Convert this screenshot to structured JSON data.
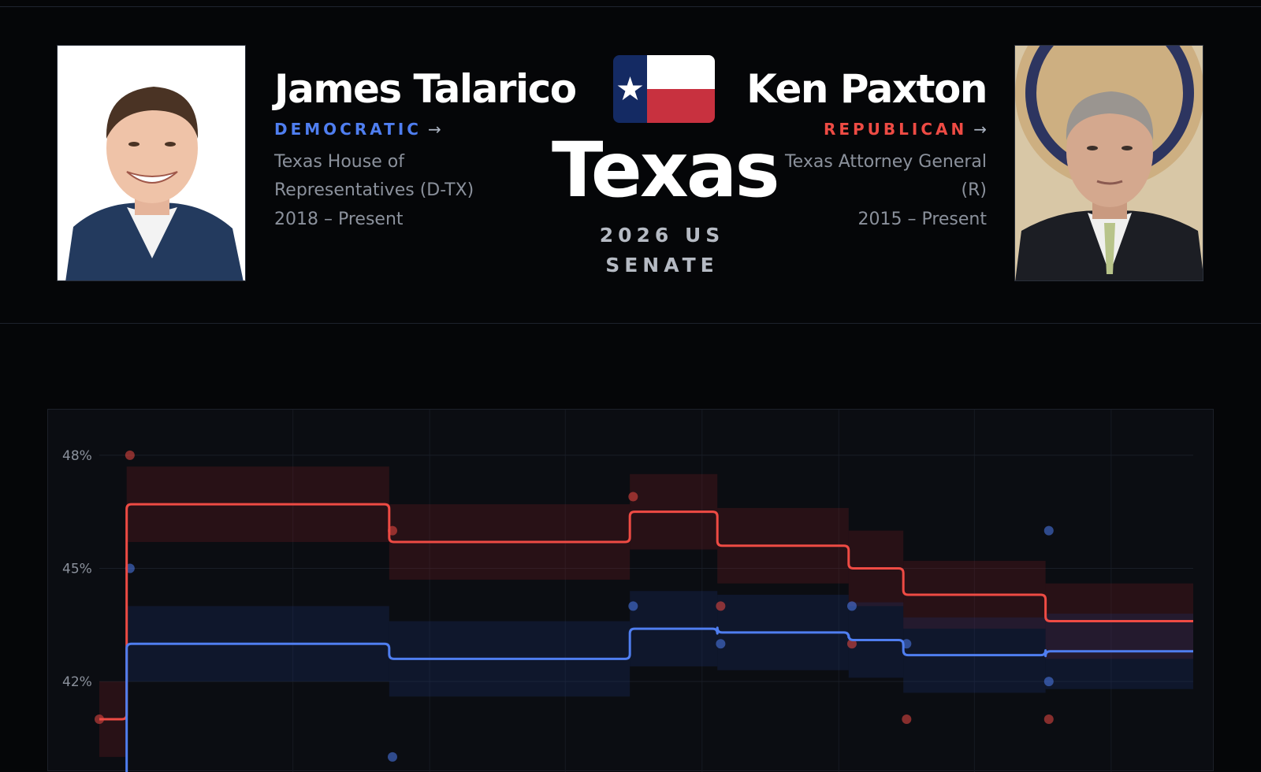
{
  "candidates": {
    "democrat": {
      "name": "James Talarico",
      "party": "DEMOCRATIC",
      "office": "Texas House of Representatives (D-TX)",
      "tenure": "2018 – Present",
      "color": "#4f7ef0"
    },
    "republican": {
      "name": "Ken Paxton",
      "party": "REPUBLICAN",
      "office": "Texas Attorney General (R)",
      "tenure": "2015 – Present",
      "color": "#ee4b44"
    }
  },
  "race": {
    "state": "Texas",
    "label": "2026 US SENATE"
  },
  "icons": {
    "party_link": "arrow-right-icon",
    "flag": "texas-flag-icon"
  },
  "chart_data": {
    "type": "line",
    "yticks": [
      "48%",
      "45%",
      "42%"
    ],
    "ytick_values": [
      48,
      45,
      42
    ],
    "ylim": [
      39.6,
      49
    ],
    "xlim": [
      0,
      100
    ],
    "grid": true,
    "series": [
      {
        "party": "republican",
        "color": "#ee4b44",
        "steps": [
          {
            "x0": 0,
            "x1": 2.5,
            "y": 41.0,
            "lo": 40.0,
            "hi": 42.0
          },
          {
            "x0": 2.5,
            "x1": 26.5,
            "y": 46.7,
            "lo": 45.7,
            "hi": 47.7
          },
          {
            "x0": 26.5,
            "x1": 48.5,
            "y": 45.7,
            "lo": 44.7,
            "hi": 46.7
          },
          {
            "x0": 48.5,
            "x1": 56.5,
            "y": 46.5,
            "lo": 45.5,
            "hi": 47.5
          },
          {
            "x0": 56.5,
            "x1": 68.5,
            "y": 45.6,
            "lo": 44.6,
            "hi": 46.6
          },
          {
            "x0": 68.5,
            "x1": 73.5,
            "y": 45.0,
            "lo": 44.0,
            "hi": 46.0
          },
          {
            "x0": 73.5,
            "x1": 86.5,
            "y": 44.3,
            "lo": 43.4,
            "hi": 45.2
          },
          {
            "x0": 86.5,
            "x1": 100,
            "y": 43.6,
            "lo": 42.6,
            "hi": 44.6
          }
        ],
        "points": [
          {
            "x": 0,
            "y": 41.0
          },
          {
            "x": 2.8,
            "y": 48.0
          },
          {
            "x": 26.8,
            "y": 46.0
          },
          {
            "x": 48.8,
            "y": 46.9
          },
          {
            "x": 56.8,
            "y": 44.0
          },
          {
            "x": 68.8,
            "y": 43.0
          },
          {
            "x": 73.8,
            "y": 41.0
          },
          {
            "x": 86.8,
            "y": 41.0
          }
        ]
      },
      {
        "party": "democrat",
        "color": "#4f7ef0",
        "steps": [
          {
            "x0": 2.5,
            "x1": 26.5,
            "y": 43.0,
            "lo": 42.0,
            "hi": 44.0
          },
          {
            "x0": 26.5,
            "x1": 48.5,
            "y": 42.6,
            "lo": 41.6,
            "hi": 43.6
          },
          {
            "x0": 48.5,
            "x1": 56.5,
            "y": 43.4,
            "lo": 42.4,
            "hi": 44.4
          },
          {
            "x0": 56.5,
            "x1": 68.5,
            "y": 43.3,
            "lo": 42.3,
            "hi": 44.3
          },
          {
            "x0": 68.5,
            "x1": 73.5,
            "y": 43.1,
            "lo": 42.1,
            "hi": 44.1
          },
          {
            "x0": 73.5,
            "x1": 86.5,
            "y": 42.7,
            "lo": 41.7,
            "hi": 43.7
          },
          {
            "x0": 86.5,
            "x1": 100,
            "y": 42.8,
            "lo": 41.8,
            "hi": 43.8
          }
        ],
        "points": [
          {
            "x": 2.8,
            "y": 45.0
          },
          {
            "x": 26.8,
            "y": 40.0
          },
          {
            "x": 48.8,
            "y": 44.0
          },
          {
            "x": 56.8,
            "y": 43.0
          },
          {
            "x": 68.8,
            "y": 44.0
          },
          {
            "x": 73.8,
            "y": 43.0
          },
          {
            "x": 86.8,
            "y": 46.0
          },
          {
            "x": 86.8,
            "y": 42.0
          }
        ]
      }
    ]
  }
}
